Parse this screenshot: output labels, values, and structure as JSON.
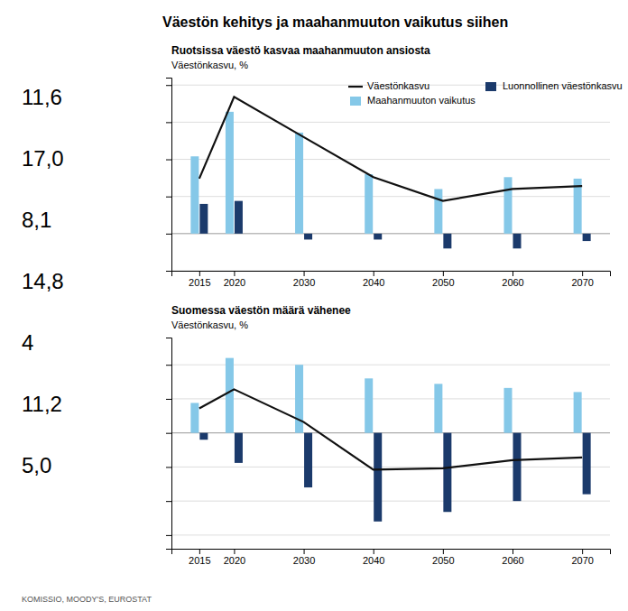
{
  "chart_data": [
    {
      "type": "bar",
      "title": "Väestön kehitys ja maahanmuuton vaikutus siihen",
      "subtitle": "Ruotsissa väestö kasvaa maahanmuuton ansiosta",
      "ylabel": "Väestönkasvu, %",
      "annotations": [
        "11,6",
        "17,0",
        "8,1",
        "14,8",
        "4",
        "11,2",
        "5,0"
      ],
      "x": [
        2015,
        2020,
        2030,
        2040,
        2050,
        2060,
        2070
      ],
      "series": [
        {
          "name": "Väestönkasvu",
          "type": "line",
          "color": "#111111",
          "values": [
            0.37,
            0.92,
            0.65,
            0.38,
            0.22,
            0.3,
            0.32
          ]
        },
        {
          "name": "Maahanmuuton vaikutus",
          "type": "bar",
          "color": "#85C8E8",
          "values": [
            0.52,
            0.82,
            0.68,
            0.4,
            0.3,
            0.38,
            0.37
          ]
        },
        {
          "name": "Luonnollinen väestönkasvu",
          "type": "bar",
          "color": "#1B3A6B",
          "values": [
            0.2,
            0.22,
            -0.04,
            -0.04,
            -0.1,
            -0.1,
            -0.05
          ]
        }
      ],
      "xlim": [
        2011,
        2074
      ],
      "xticks": [
        2015,
        2020,
        2030,
        2040,
        2050,
        2060,
        2070
      ],
      "ylim": [
        -0.25,
        1.05
      ],
      "yticks": [
        -0.25,
        0,
        0.25,
        0.5,
        0.75,
        1.0
      ],
      "grid": true,
      "tick_labels": "x",
      "legend": "upper right"
    },
    {
      "type": "bar",
      "subtitle": "Suomessa väestön määrä vähenee",
      "ylabel": "Väestönkasvu, %",
      "source": "KOMISSIO, MOODY'S, EUROSTAT",
      "x": [
        2015,
        2020,
        2030,
        2040,
        2050,
        2060,
        2070
      ],
      "series": [
        {
          "name": "Väestönkasvu",
          "type": "line",
          "color": "#111111",
          "values": [
            0.18,
            0.32,
            0.08,
            -0.27,
            -0.26,
            -0.2,
            -0.18
          ]
        },
        {
          "name": "Maahanmuuton vaikutus",
          "type": "bar",
          "color": "#85C8E8",
          "values": [
            0.22,
            0.55,
            0.5,
            0.4,
            0.36,
            0.33,
            0.3
          ]
        },
        {
          "name": "Luonnollinen väestönkasvu",
          "type": "bar",
          "color": "#1B3A6B",
          "values": [
            -0.05,
            -0.22,
            -0.4,
            -0.65,
            -0.58,
            -0.5,
            -0.45
          ]
        }
      ],
      "xlim": [
        2011,
        2074
      ],
      "xticks": [
        2015,
        2020,
        2030,
        2040,
        2050,
        2060,
        2070
      ],
      "ylim": [
        -0.85,
        0.7
      ],
      "yticks": [
        -0.75,
        -0.5,
        -0.25,
        0,
        0.25,
        0.5
      ],
      "grid": true,
      "tick_labels": "x"
    }
  ]
}
